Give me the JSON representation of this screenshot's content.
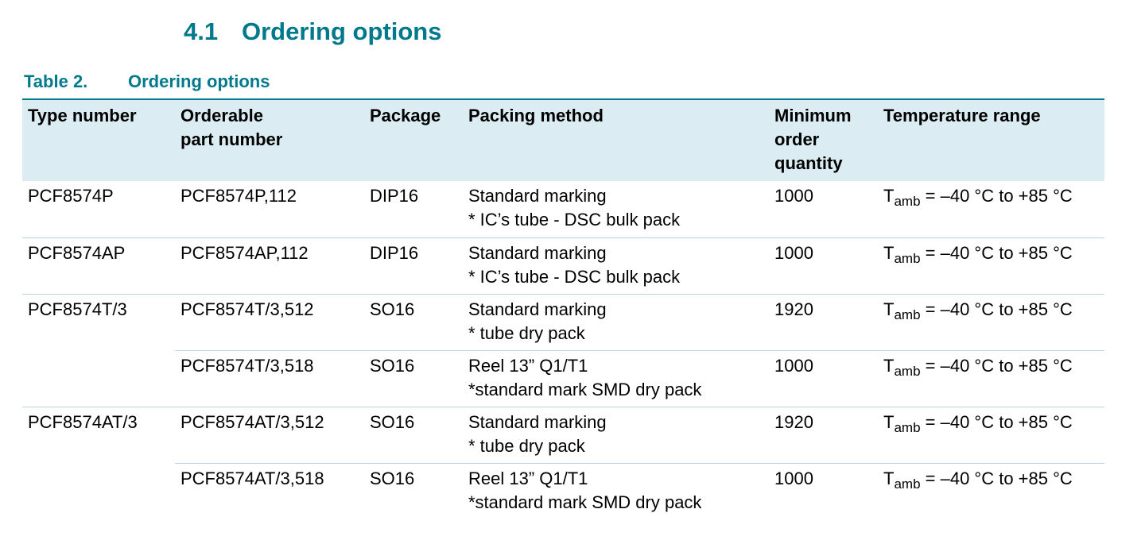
{
  "section": {
    "number": "4.1",
    "title": "Ordering options"
  },
  "table_caption": {
    "label": "Table 2.",
    "title": "Ordering options"
  },
  "columns": {
    "type_number": "Type number",
    "orderable_line1": "Orderable",
    "orderable_line2": "part number",
    "package": "Package",
    "packing_method": "Packing method",
    "moq_line1": "Minimum",
    "moq_line2": "order",
    "moq_line3": "quantity",
    "temperature_range": "Temperature range"
  },
  "rows": [
    {
      "type_number": "PCF8574P",
      "part_number": "PCF8574P,112",
      "package": "DIP16",
      "packing_line1": "Standard marking",
      "packing_line2": "* IC’s tube - DSC bulk pack",
      "moq": "1000",
      "temp_symbol": "T",
      "temp_sub": "amb",
      "temp_range": " = –40 °C to +85 °C"
    },
    {
      "type_number": "PCF8574AP",
      "part_number": "PCF8574AP,112",
      "package": "DIP16",
      "packing_line1": "Standard marking",
      "packing_line2": "* IC’s tube - DSC bulk pack",
      "moq": "1000",
      "temp_symbol": "T",
      "temp_sub": "amb",
      "temp_range": " = –40 °C to +85 °C"
    },
    {
      "type_number": "PCF8574T/3",
      "part_number": "PCF8574T/3,512",
      "package": "SO16",
      "packing_line1": "Standard marking",
      "packing_line2": "* tube dry pack",
      "moq": "1920",
      "temp_symbol": "T",
      "temp_sub": "amb",
      "temp_range": " = –40 °C to +85 °C"
    },
    {
      "type_number": "",
      "part_number": "PCF8574T/3,518",
      "package": "SO16",
      "packing_line1": "Reel 13” Q1/T1",
      "packing_line2": "*standard mark SMD dry pack",
      "moq": "1000",
      "temp_symbol": "T",
      "temp_sub": "amb",
      "temp_range": " = –40 °C to +85 °C"
    },
    {
      "type_number": "PCF8574AT/3",
      "part_number": "PCF8574AT/3,512",
      "package": "SO16",
      "packing_line1": "Standard marking",
      "packing_line2": "* tube dry pack",
      "moq": "1920",
      "temp_symbol": "T",
      "temp_sub": "amb",
      "temp_range": " = –40 °C to +85 °C"
    },
    {
      "type_number": "",
      "part_number": "PCF8574AT/3,518",
      "package": "SO16",
      "packing_line1": "Reel 13” Q1/T1",
      "packing_line2": "*standard mark SMD dry pack",
      "moq": "1000",
      "temp_symbol": "T",
      "temp_sub": "amb",
      "temp_range": " = –40 °C to +85 °C"
    }
  ],
  "colors": {
    "heading": "#00798c",
    "header_background": "#dbedf2",
    "row_separator": "#b6d6de"
  }
}
